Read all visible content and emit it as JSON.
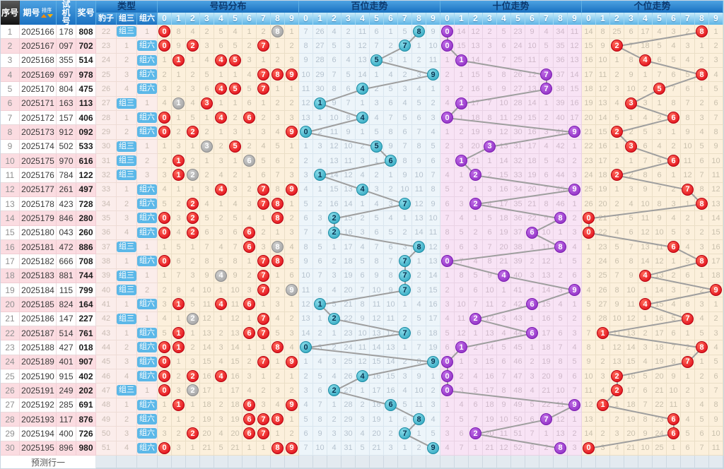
{
  "header": {
    "seq": "序号",
    "period": "期号",
    "sort": "排序",
    "test": "试机号",
    "prize": "奖号",
    "type_group": "类型",
    "type_cols": [
      "豹子",
      "组三",
      "组六"
    ],
    "sections": [
      "号码分布",
      "百位走势",
      "十位走势",
      "个位走势"
    ],
    "digits": [
      "0",
      "1",
      "2",
      "3",
      "4",
      "5",
      "6",
      "7",
      "8",
      "9"
    ]
  },
  "footer": {
    "prediction_label": "预测行一"
  },
  "colors": {
    "header_blue": "#2b85cc",
    "digit_header_blue": "#5eb5e6",
    "hit_circle_red": "#e60012",
    "repeat_circle_gray": "#aaaaaa",
    "hundreds_circle_teal": "#2fb0c6",
    "tens_circle_purple": "#9633cc",
    "badge_blue": "#5cb8e8",
    "trend_line_gray": "#9e9e9e",
    "stripe_pink": "#fbdce1",
    "distribution_bg": "#fcf0dc",
    "hundreds_bg": "#edf5fa",
    "tens_bg": "#f8e3f5"
  },
  "chart_data": {
    "type": "table",
    "columns": [
      "序号",
      "期号",
      "试机号",
      "奖号"
    ],
    "rows": [
      {
        "seq": 1,
        "period": "2025166",
        "test": "178",
        "prize": "808"
      },
      {
        "seq": 2,
        "period": "2025167",
        "test": "097",
        "prize": "702"
      },
      {
        "seq": 3,
        "period": "2025168",
        "test": "355",
        "prize": "514"
      },
      {
        "seq": 4,
        "period": "2025169",
        "test": "697",
        "prize": "978"
      },
      {
        "seq": 5,
        "period": "2025170",
        "test": "804",
        "prize": "475"
      },
      {
        "seq": 6,
        "period": "2025171",
        "test": "163",
        "prize": "113"
      },
      {
        "seq": 7,
        "period": "2025172",
        "test": "157",
        "prize": "406"
      },
      {
        "seq": 8,
        "period": "2025173",
        "test": "912",
        "prize": "092"
      },
      {
        "seq": 9,
        "period": "2025174",
        "test": "502",
        "prize": "533"
      },
      {
        "seq": 10,
        "period": "2025175",
        "test": "970",
        "prize": "616"
      },
      {
        "seq": 11,
        "period": "2025176",
        "test": "784",
        "prize": "122"
      },
      {
        "seq": 12,
        "period": "2025177",
        "test": "261",
        "prize": "497"
      },
      {
        "seq": 13,
        "period": "2025178",
        "test": "423",
        "prize": "728"
      },
      {
        "seq": 14,
        "period": "2025179",
        "test": "846",
        "prize": "280"
      },
      {
        "seq": 15,
        "period": "2025180",
        "test": "043",
        "prize": "260"
      },
      {
        "seq": 16,
        "period": "2025181",
        "test": "472",
        "prize": "886"
      },
      {
        "seq": 17,
        "period": "2025182",
        "test": "666",
        "prize": "708"
      },
      {
        "seq": 18,
        "period": "2025183",
        "test": "881",
        "prize": "744"
      },
      {
        "seq": 19,
        "period": "2025184",
        "test": "115",
        "prize": "799"
      },
      {
        "seq": 20,
        "period": "2025185",
        "test": "824",
        "prize": "164"
      },
      {
        "seq": 21,
        "period": "2025186",
        "test": "147",
        "prize": "227"
      },
      {
        "seq": 22,
        "period": "2025187",
        "test": "514",
        "prize": "761"
      },
      {
        "seq": 23,
        "period": "2025188",
        "test": "427",
        "prize": "018"
      },
      {
        "seq": 24,
        "period": "2025189",
        "test": "401",
        "prize": "907"
      },
      {
        "seq": 25,
        "period": "2025190",
        "test": "915",
        "prize": "402"
      },
      {
        "seq": 26,
        "period": "2025191",
        "test": "249",
        "prize": "202"
      },
      {
        "seq": 27,
        "period": "2025192",
        "test": "285",
        "prize": "691"
      },
      {
        "seq": 28,
        "period": "2025193",
        "test": "117",
        "prize": "876"
      },
      {
        "seq": 29,
        "period": "2025194",
        "test": "400",
        "prize": "726"
      },
      {
        "seq": 30,
        "period": "2025195",
        "test": "896",
        "prize": "980"
      }
    ],
    "baselines": {
      "distribution_prev": [
        0,
        7,
        3,
        1,
        4,
        3,
        0,
        1,
        0,
        0
      ],
      "hundreds_prev": [
        6,
        25,
        3,
        1,
        10,
        5,
        0,
        4,
        0,
        8
      ],
      "tens_prev": [
        0,
        13,
        11,
        1,
        4,
        22,
        8,
        3,
        33,
        10
      ],
      "units_prev": [
        13,
        7,
        24,
        5,
        16,
        3,
        2,
        1,
        0,
        0
      ],
      "leopard_prev": 21,
      "zu3_prev": 0,
      "zu6_prev": 0
    }
  }
}
